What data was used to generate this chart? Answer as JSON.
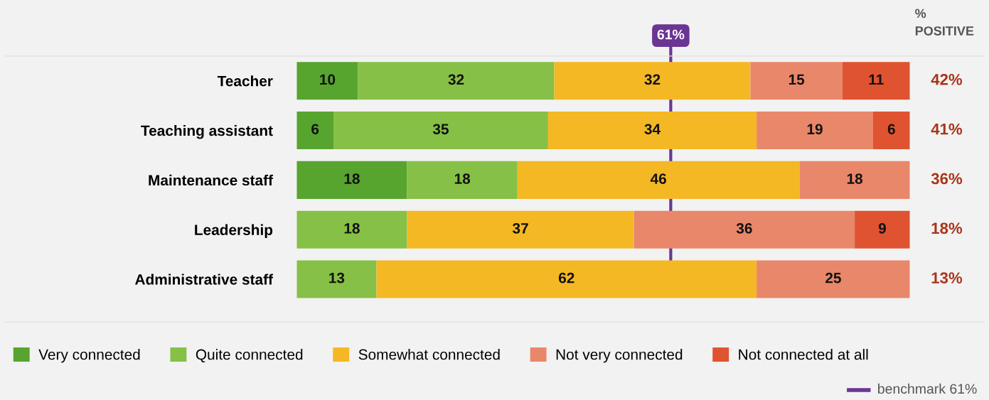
{
  "chart_data": {
    "type": "bar",
    "orientation": "horizontal",
    "stacked": true,
    "data_labels": true,
    "grid": false,
    "legend": "bottom",
    "tick_labels": "y",
    "xlim": [
      0,
      100
    ],
    "categories": [
      "Teacher",
      "Teaching assistant",
      "Maintenance staff",
      "Leadership",
      "Administrative staff"
    ],
    "series": [
      {
        "name": "Very connected",
        "color": "#57a42e",
        "values": [
          10,
          6,
          18,
          null,
          null
        ]
      },
      {
        "name": "Quite connected",
        "color": "#86c046",
        "values": [
          32,
          35,
          18,
          18,
          13
        ]
      },
      {
        "name": "Somewhat connected",
        "color": "#f4b824",
        "values": [
          32,
          34,
          46,
          37,
          62
        ]
      },
      {
        "name": "Not very connected",
        "color": "#e9876a",
        "values": [
          15,
          19,
          18,
          36,
          25
        ]
      },
      {
        "name": "Not connected at all",
        "color": "#e05330",
        "values": [
          11,
          6,
          null,
          9,
          null
        ]
      }
    ],
    "ref_lines": [
      {
        "axis": "x",
        "value": 61,
        "label": "61%",
        "color": "#6b3593"
      }
    ],
    "annotations": [
      "% POSITIVE",
      "42%",
      "41%",
      "36%",
      "18%",
      "13%",
      "benchmark 61%"
    ]
  }
}
